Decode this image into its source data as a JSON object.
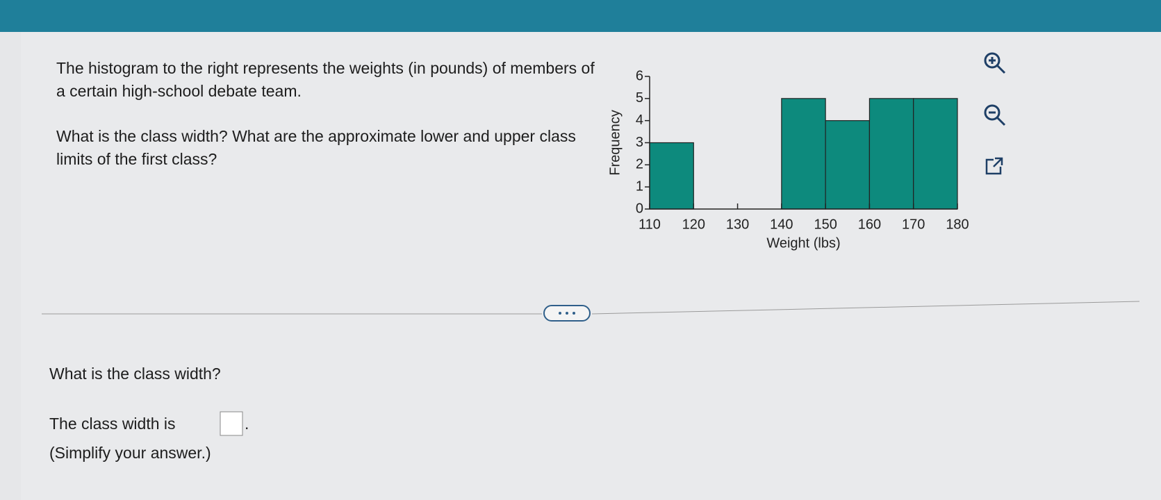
{
  "question": {
    "intro": "The histogram to the right represents the weights (in pounds) of members of a certain high-school debate team.",
    "prompt": "What is the class width? What are the approximate lower and upper class limits of the first class?"
  },
  "part": {
    "question": "What is the class width?",
    "answer_prefix": "The class width is",
    "answer_suffix": ".",
    "hint": "(Simplify your answer.)"
  },
  "chart_data": {
    "type": "histogram",
    "xlabel": "Weight (lbs)",
    "ylabel": "Frequency",
    "bins": [
      110,
      120,
      130,
      140,
      150,
      160,
      170,
      180
    ],
    "values": [
      3,
      0,
      0,
      5,
      4,
      5,
      5
    ],
    "color": "#0d8a7d",
    "xlim": [
      110,
      180
    ],
    "xticks": [
      110,
      120,
      130,
      140,
      150,
      160,
      170,
      180
    ],
    "ylim": [
      0,
      6
    ],
    "yticks": [
      0,
      1,
      2,
      3,
      4,
      5,
      6
    ]
  }
}
